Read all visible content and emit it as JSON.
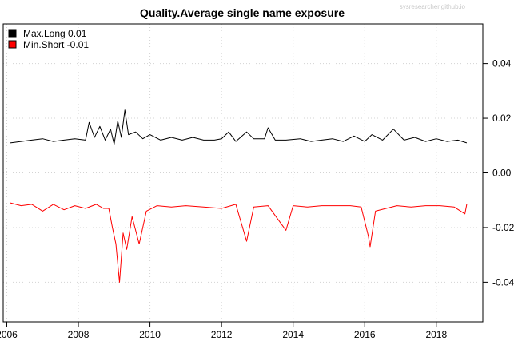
{
  "chart_data": {
    "type": "line",
    "title": "Quality.Average single name exposure",
    "watermark": "sysresearcher.github.io",
    "xlabel": "",
    "ylabel": "",
    "xlim": [
      2005.9,
      2019.3
    ],
    "ylim": [
      -0.0545,
      0.0545
    ],
    "x_ticks": [
      2006,
      2008,
      2010,
      2012,
      2014,
      2016,
      2018
    ],
    "x_tick_labels": [
      "2006",
      "2008",
      "2010",
      "2012",
      "2014",
      "2016",
      "2018"
    ],
    "y_ticks": [
      -0.04,
      -0.02,
      0.0,
      0.02,
      0.04
    ],
    "y_tick_labels": [
      "-0.04",
      "-0.02",
      "0.00",
      "0.02",
      "0.04"
    ],
    "y_axis_side": "right",
    "grid": true,
    "legend": {
      "position": "top-left"
    },
    "series": [
      {
        "name": "Max.Long  0.01",
        "color": "#000000",
        "points": [
          [
            2006.1,
            0.011
          ],
          [
            2006.4,
            0.0115
          ],
          [
            2006.7,
            0.012
          ],
          [
            2007.0,
            0.0125
          ],
          [
            2007.3,
            0.0115
          ],
          [
            2007.6,
            0.012
          ],
          [
            2007.9,
            0.0125
          ],
          [
            2008.2,
            0.012
          ],
          [
            2008.3,
            0.0185
          ],
          [
            2008.45,
            0.013
          ],
          [
            2008.6,
            0.017
          ],
          [
            2008.75,
            0.012
          ],
          [
            2008.9,
            0.016
          ],
          [
            2009.0,
            0.0105
          ],
          [
            2009.1,
            0.019
          ],
          [
            2009.2,
            0.013
          ],
          [
            2009.3,
            0.023
          ],
          [
            2009.4,
            0.014
          ],
          [
            2009.6,
            0.015
          ],
          [
            2009.8,
            0.0125
          ],
          [
            2010.0,
            0.014
          ],
          [
            2010.3,
            0.012
          ],
          [
            2010.6,
            0.013
          ],
          [
            2010.9,
            0.012
          ],
          [
            2011.2,
            0.013
          ],
          [
            2011.5,
            0.012
          ],
          [
            2011.8,
            0.012
          ],
          [
            2012.0,
            0.0125
          ],
          [
            2012.2,
            0.015
          ],
          [
            2012.4,
            0.0115
          ],
          [
            2012.7,
            0.015
          ],
          [
            2012.9,
            0.0125
          ],
          [
            2013.2,
            0.0125
          ],
          [
            2013.3,
            0.0165
          ],
          [
            2013.5,
            0.012
          ],
          [
            2013.8,
            0.012
          ],
          [
            2014.2,
            0.0125
          ],
          [
            2014.5,
            0.0115
          ],
          [
            2014.8,
            0.012
          ],
          [
            2015.1,
            0.0125
          ],
          [
            2015.4,
            0.0115
          ],
          [
            2015.7,
            0.0135
          ],
          [
            2016.0,
            0.0115
          ],
          [
            2016.2,
            0.014
          ],
          [
            2016.5,
            0.012
          ],
          [
            2016.8,
            0.016
          ],
          [
            2017.1,
            0.012
          ],
          [
            2017.4,
            0.013
          ],
          [
            2017.7,
            0.0115
          ],
          [
            2018.0,
            0.0125
          ],
          [
            2018.3,
            0.0115
          ],
          [
            2018.6,
            0.012
          ],
          [
            2018.85,
            0.011
          ]
        ]
      },
      {
        "name": "Min.Short -0.01",
        "color": "#ff0000",
        "points": [
          [
            2006.1,
            -0.011
          ],
          [
            2006.4,
            -0.012
          ],
          [
            2006.7,
            -0.0115
          ],
          [
            2007.0,
            -0.014
          ],
          [
            2007.3,
            -0.0115
          ],
          [
            2007.6,
            -0.0135
          ],
          [
            2007.9,
            -0.012
          ],
          [
            2008.2,
            -0.013
          ],
          [
            2008.5,
            -0.0115
          ],
          [
            2008.7,
            -0.013
          ],
          [
            2008.85,
            -0.013
          ],
          [
            2008.95,
            -0.02
          ],
          [
            2009.05,
            -0.026
          ],
          [
            2009.15,
            -0.04
          ],
          [
            2009.25,
            -0.022
          ],
          [
            2009.35,
            -0.028
          ],
          [
            2009.5,
            -0.016
          ],
          [
            2009.7,
            -0.026
          ],
          [
            2009.9,
            -0.014
          ],
          [
            2010.2,
            -0.012
          ],
          [
            2010.6,
            -0.0125
          ],
          [
            2011.0,
            -0.012
          ],
          [
            2011.5,
            -0.0125
          ],
          [
            2012.0,
            -0.013
          ],
          [
            2012.4,
            -0.0115
          ],
          [
            2012.7,
            -0.025
          ],
          [
            2012.9,
            -0.0125
          ],
          [
            2013.3,
            -0.012
          ],
          [
            2013.8,
            -0.021
          ],
          [
            2014.0,
            -0.012
          ],
          [
            2014.4,
            -0.0125
          ],
          [
            2014.8,
            -0.012
          ],
          [
            2015.2,
            -0.012
          ],
          [
            2015.6,
            -0.012
          ],
          [
            2015.9,
            -0.0125
          ],
          [
            2016.1,
            -0.023
          ],
          [
            2016.15,
            -0.027
          ],
          [
            2016.3,
            -0.014
          ],
          [
            2016.6,
            -0.013
          ],
          [
            2016.9,
            -0.012
          ],
          [
            2017.3,
            -0.0125
          ],
          [
            2017.7,
            -0.012
          ],
          [
            2018.1,
            -0.012
          ],
          [
            2018.5,
            -0.0125
          ],
          [
            2018.8,
            -0.015
          ],
          [
            2018.85,
            -0.0115
          ]
        ]
      }
    ]
  }
}
